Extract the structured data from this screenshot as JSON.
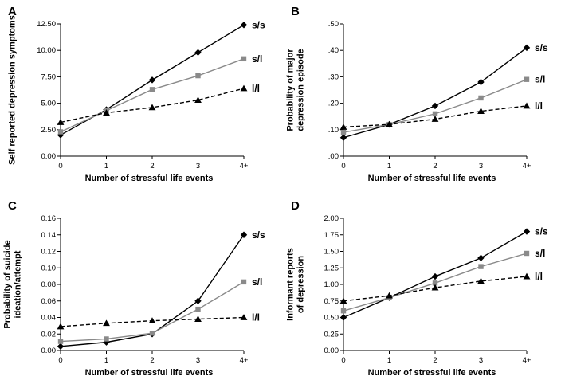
{
  "chart_data": [
    {
      "panel": "A",
      "type": "line",
      "xlabel": "Number of stressful life events",
      "ylabel": "Self reported depression symptoms",
      "x_ticks": [
        "0",
        "1",
        "2",
        "3",
        "4+"
      ],
      "y_ticks": [
        "0.00",
        "2.50",
        "5.00",
        "7.50",
        "10.00",
        "12.50"
      ],
      "ylim": [
        0,
        12.5
      ],
      "legend_position": "right-of-line-ends",
      "grid": false,
      "series": [
        {
          "name": "s/s",
          "color": "#000000",
          "marker": "diamond",
          "dashed": false,
          "values": [
            2.0,
            4.4,
            7.2,
            9.8,
            12.4
          ]
        },
        {
          "name": "s/l",
          "color": "#8a8a8a",
          "marker": "square",
          "dashed": false,
          "values": [
            2.3,
            4.3,
            6.3,
            7.6,
            9.2
          ]
        },
        {
          "name": "l/l",
          "color": "#000000",
          "marker": "triangle",
          "dashed": true,
          "values": [
            3.2,
            4.1,
            4.6,
            5.3,
            6.4
          ]
        }
      ]
    },
    {
      "panel": "B",
      "type": "line",
      "xlabel": "Number of stressful life events",
      "ylabel": "Probability of major\ndepression episode",
      "x_ticks": [
        "0",
        "1",
        "2",
        "3",
        "4+"
      ],
      "y_ticks": [
        ".00",
        ".10",
        ".20",
        ".30",
        ".40",
        ".50"
      ],
      "ylim": [
        0,
        0.5
      ],
      "legend_position": "right-of-line-ends",
      "grid": false,
      "series": [
        {
          "name": "s/s",
          "color": "#000000",
          "marker": "diamond",
          "dashed": false,
          "values": [
            0.07,
            0.12,
            0.19,
            0.28,
            0.41
          ]
        },
        {
          "name": "s/l",
          "color": "#8a8a8a",
          "marker": "square",
          "dashed": false,
          "values": [
            0.09,
            0.12,
            0.16,
            0.22,
            0.29
          ]
        },
        {
          "name": "l/l",
          "color": "#000000",
          "marker": "triangle",
          "dashed": true,
          "values": [
            0.11,
            0.12,
            0.14,
            0.17,
            0.19
          ]
        }
      ]
    },
    {
      "panel": "C",
      "type": "line",
      "xlabel": "Number of stressful life events",
      "ylabel": "Probability of suicide\nideation/attempt",
      "x_ticks": [
        "0",
        "1",
        "2",
        "3",
        "4+"
      ],
      "y_ticks": [
        "0.00",
        "0.02",
        "0.04",
        "0.06",
        "0.08",
        "0.10",
        "0.12",
        "0.14",
        "0.16"
      ],
      "ylim": [
        0,
        0.16
      ],
      "legend_position": "right-of-line-ends",
      "grid": false,
      "series": [
        {
          "name": "s/s",
          "color": "#000000",
          "marker": "diamond",
          "dashed": false,
          "values": [
            0.005,
            0.01,
            0.02,
            0.06,
            0.14
          ]
        },
        {
          "name": "s/l",
          "color": "#8a8a8a",
          "marker": "square",
          "dashed": false,
          "values": [
            0.011,
            0.014,
            0.021,
            0.05,
            0.083
          ]
        },
        {
          "name": "l/l",
          "color": "#000000",
          "marker": "triangle",
          "dashed": true,
          "values": [
            0.029,
            0.033,
            0.036,
            0.038,
            0.04
          ]
        }
      ]
    },
    {
      "panel": "D",
      "type": "line",
      "xlabel": "Number of stressful life events",
      "ylabel": "Informant reports\nof depression",
      "x_ticks": [
        "0",
        "1",
        "2",
        "3",
        "4+"
      ],
      "y_ticks": [
        "0.00",
        "0.25",
        "0.50",
        "0.75",
        "1.00",
        "1.25",
        "1.50",
        "1.75",
        "2.00"
      ],
      "ylim": [
        0,
        2.0
      ],
      "legend_position": "right-of-line-ends",
      "grid": false,
      "series": [
        {
          "name": "s/s",
          "color": "#000000",
          "marker": "diamond",
          "dashed": false,
          "values": [
            0.5,
            0.8,
            1.12,
            1.4,
            1.8
          ]
        },
        {
          "name": "s/l",
          "color": "#8a8a8a",
          "marker": "square",
          "dashed": false,
          "values": [
            0.6,
            0.8,
            1.02,
            1.27,
            1.47
          ]
        },
        {
          "name": "l/l",
          "color": "#000000",
          "marker": "triangle",
          "dashed": true,
          "values": [
            0.75,
            0.83,
            0.95,
            1.05,
            1.12
          ]
        }
      ]
    }
  ]
}
